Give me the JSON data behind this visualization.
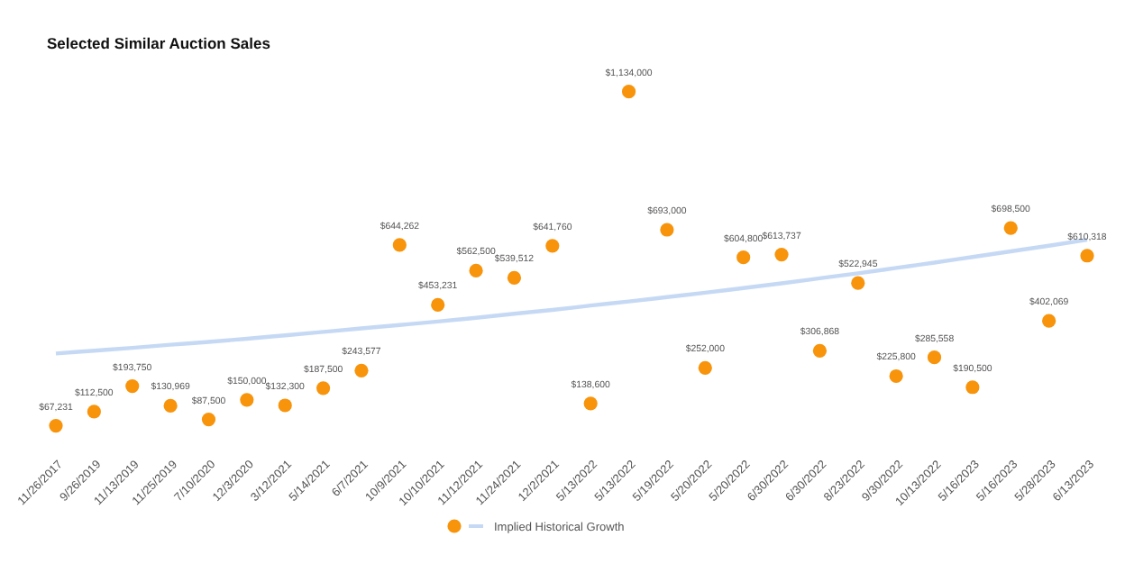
{
  "chart_data": {
    "type": "scatter",
    "title": "Selected Similar Auction Sales",
    "categories": [
      "11/26/2017",
      "9/26/2019",
      "11/13/2019",
      "11/25/2019",
      "7/10/2020",
      "12/3/2020",
      "3/12/2021",
      "5/14/2021",
      "6/7/2021",
      "10/9/2021",
      "10/10/2021",
      "11/12/2021",
      "11/24/2021",
      "12/2/2021",
      "5/13/2022",
      "5/13/2022",
      "5/19/2022",
      "5/20/2022",
      "5/20/2022",
      "6/30/2022",
      "6/30/2022",
      "8/23/2022",
      "9/30/2022",
      "10/13/2022",
      "5/16/2023",
      "5/16/2023",
      "5/28/2023",
      "6/13/2023"
    ],
    "tick_labels": "x",
    "legend": "bottom",
    "grid": false,
    "series": [
      {
        "color": "#f7940c",
        "marker": "circle",
        "values": [
          67231,
          112500,
          193750,
          130969,
          87500,
          150000,
          132300,
          187500,
          243577,
          644262,
          453231,
          562500,
          539512,
          641760,
          138600,
          1134000,
          693000,
          252000,
          604800,
          613737,
          306868,
          522945,
          225800,
          285558,
          190500,
          698500,
          402069,
          610318
        ],
        "value_labels": [
          "$67,231",
          "$112,500",
          "$193,750",
          "$130,969",
          "$87,500",
          "$150,000",
          "$132,300",
          "$187,500",
          "$243,577",
          "$644,262",
          "$453,231",
          "$562,500",
          "$539,512",
          "$641,760",
          "$138,600",
          "$1,134,000",
          "$693,000",
          "$252,000",
          "$604,800",
          "$613,737",
          "$306,868",
          "$522,945",
          "$225,800",
          "$285,558",
          "$190,500",
          "$698,500",
          "$402,069",
          "$610,318"
        ]
      },
      {
        "type": "line",
        "name": "Implied Historical Growth",
        "color": "#c6d9f4",
        "marker": "none",
        "values": [
          298000,
          307000,
          316000,
          326000,
          335000,
          345000,
          356000,
          367000,
          378000,
          389000,
          400000,
          412000,
          425000,
          437000,
          451000,
          464000,
          478000,
          492000,
          507000,
          522000,
          538000,
          554000,
          571000,
          588000,
          606000,
          624000,
          642000,
          661000
        ]
      }
    ]
  }
}
